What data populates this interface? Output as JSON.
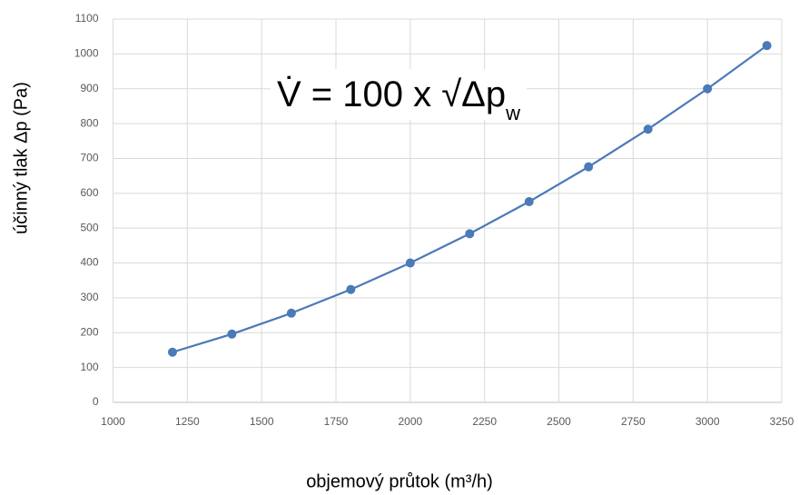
{
  "chart_data": {
    "type": "line",
    "annotation": {
      "text": "V̇ = 100 x √Δp",
      "subscript": "w"
    },
    "x_label": "objemový průtok (m³/h)",
    "y_label": "účinný tlak Δp (Pa)",
    "x": [
      1200,
      1400,
      1600,
      1800,
      2000,
      2200,
      2400,
      2600,
      2800,
      3000,
      3200
    ],
    "series": [
      {
        "name": "Δp",
        "color": "#4a7ab8",
        "values": [
          144,
          196,
          256,
          324,
          400,
          484,
          576,
          676,
          784,
          900,
          1024
        ]
      }
    ],
    "xlim": [
      1000,
      3250
    ],
    "xticks": [
      1000,
      1250,
      1500,
      1750,
      2000,
      2250,
      2500,
      2750,
      3000,
      3250
    ],
    "ylim": [
      0,
      1100
    ],
    "yticks": [
      0,
      100,
      200,
      300,
      400,
      500,
      600,
      700,
      800,
      900,
      1000,
      1100
    ],
    "grid": true
  }
}
